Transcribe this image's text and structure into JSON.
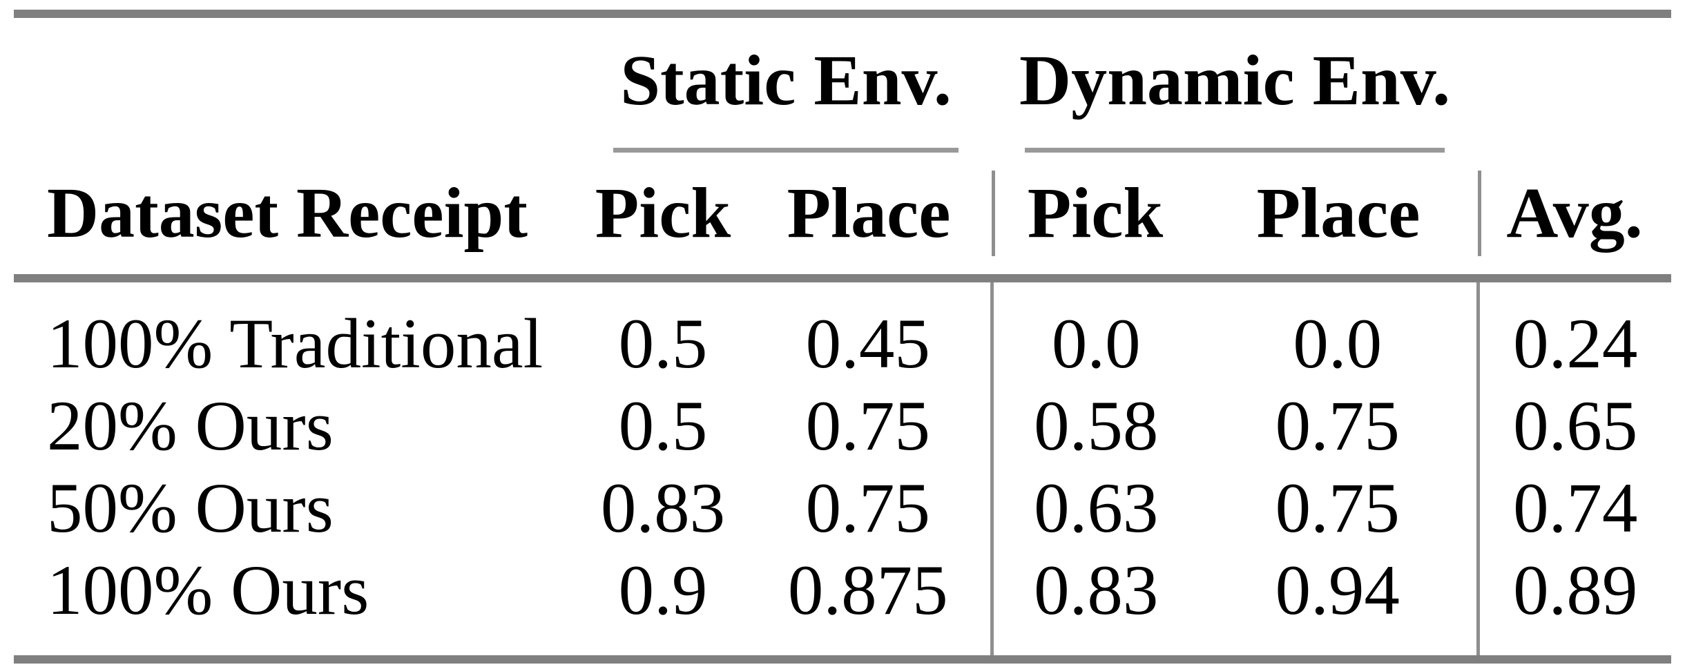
{
  "table": {
    "group_headers": [
      {
        "label": "Static Env."
      },
      {
        "label": "Dynamic Env."
      }
    ],
    "column_headers": {
      "dataset": "Dataset Receipt",
      "static_pick": "Pick",
      "static_place": "Place",
      "dynamic_pick": "Pick",
      "dynamic_place": "Place",
      "avg": "Avg."
    },
    "rows": [
      {
        "dataset": "100% Traditional",
        "static_pick": "0.5",
        "static_place": "0.45",
        "dynamic_pick": "0.0",
        "dynamic_place": "0.0",
        "avg": "0.24"
      },
      {
        "dataset": "20% Ours",
        "static_pick": "0.5",
        "static_place": "0.75",
        "dynamic_pick": "0.58",
        "dynamic_place": "0.75",
        "avg": "0.65"
      },
      {
        "dataset": "50% Ours",
        "static_pick": "0.83",
        "static_place": "0.75",
        "dynamic_pick": "0.63",
        "dynamic_place": "0.75",
        "avg": "0.74"
      },
      {
        "dataset": "100% Ours",
        "static_pick": "0.9",
        "static_place": "0.875",
        "dynamic_pick": "0.83",
        "dynamic_place": "0.94",
        "avg": "0.89"
      }
    ],
    "colors": {
      "heavy_rule": "#7f7f7f",
      "cmid_rule": "#999999",
      "vertical_rule": "#8f8f8f",
      "text": "#000000",
      "background": "#ffffff"
    }
  },
  "chart_data": {
    "type": "table",
    "title": "",
    "categories": [
      "100% Traditional",
      "20% Ours",
      "50% Ours",
      "100% Ours"
    ],
    "series": [
      {
        "name": "Static Env. Pick",
        "values": [
          0.5,
          0.5,
          0.83,
          0.9
        ]
      },
      {
        "name": "Static Env. Place",
        "values": [
          0.45,
          0.75,
          0.75,
          0.875
        ]
      },
      {
        "name": "Dynamic Env. Pick",
        "values": [
          0.0,
          0.58,
          0.63,
          0.83
        ]
      },
      {
        "name": "Dynamic Env. Place",
        "values": [
          0.0,
          0.75,
          0.75,
          0.94
        ]
      },
      {
        "name": "Avg.",
        "values": [
          0.24,
          0.65,
          0.74,
          0.89
        ]
      }
    ]
  }
}
